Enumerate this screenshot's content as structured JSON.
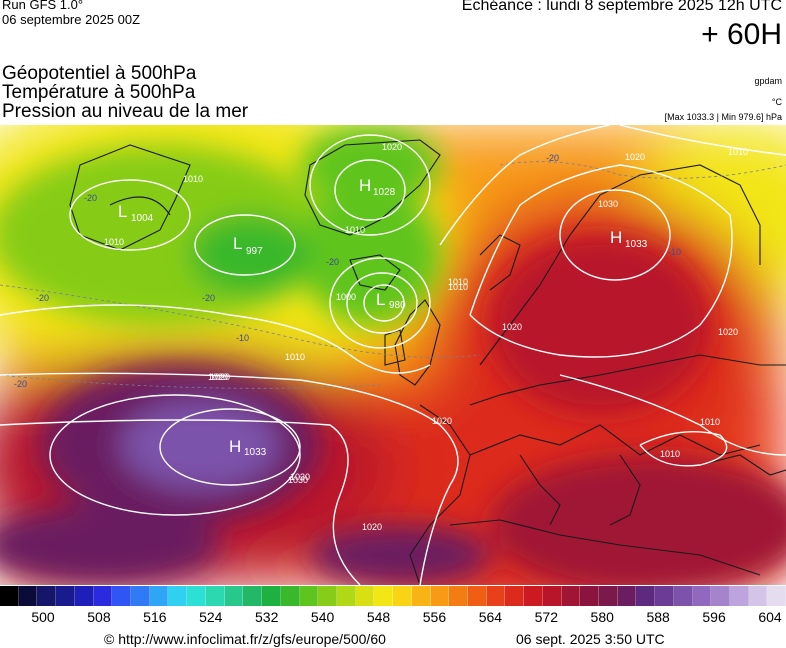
{
  "header": {
    "run_title": "Run GFS 1.0°",
    "run_date": "06 septembre 2025 00Z",
    "echeance": "Echéance : lundi 8 septembre 2025 12h UTC",
    "horizon": "+ 60H",
    "layers": [
      "Géopotentiel à 500hPa",
      "Température à 500hPa",
      "Pression au niveau de la mer"
    ],
    "units": [
      "gpdam",
      "°C",
      "[Max 1033.3 | Min 979.6] hPa"
    ]
  },
  "map": {
    "pressure_centers": [
      {
        "type": "L",
        "value": "1004"
      },
      {
        "type": "L",
        "value": "997"
      },
      {
        "type": "H",
        "value": "1028"
      },
      {
        "type": "L",
        "value": "980"
      },
      {
        "type": "H",
        "value": "1033"
      },
      {
        "type": "H",
        "value": "1033"
      }
    ],
    "isobar_labels": [
      "1010",
      "1020",
      "1010",
      "1020",
      "1000",
      "1010",
      "1010",
      "1020",
      "1030",
      "1010",
      "1020",
      "1030",
      "1010",
      "1020",
      "1020",
      "1010",
      "1010",
      "1020",
      "1030",
      "1020",
      "1010"
    ],
    "temperature_labels": [
      "-20",
      "-20",
      "-20",
      "-20",
      "-20",
      "-10",
      "-10",
      "-20"
    ]
  },
  "colorbar": {
    "colors": [
      "#000000",
      "#0b0b3a",
      "#15156a",
      "#1a1a8f",
      "#1e1eb8",
      "#2a2adf",
      "#2f55f5",
      "#2f7af5",
      "#2fa6f5",
      "#2fd0f0",
      "#2ce0d4",
      "#2cd8b0",
      "#28c88c",
      "#22b866",
      "#1eb040",
      "#38b82a",
      "#5ec41e",
      "#86cc18",
      "#b0d814",
      "#d8e014",
      "#f2e614",
      "#f8d414",
      "#f8b414",
      "#f89a14",
      "#f47c14",
      "#ef5e14",
      "#e8401a",
      "#dc2a1e",
      "#cc1a22",
      "#b8142a",
      "#a01434",
      "#8a143e",
      "#7a1a4a",
      "#6a1e60",
      "#5e2a80",
      "#6a3c96",
      "#7c52aa",
      "#9068be",
      "#a684cc",
      "#bea4dc",
      "#d4c4e8",
      "#e6dcf0"
    ],
    "ticks": [
      "500",
      "508",
      "516",
      "524",
      "532",
      "540",
      "548",
      "556",
      "564",
      "572",
      "580",
      "588",
      "596",
      "604"
    ]
  },
  "footer": {
    "url": "© http://www.infoclimat.fr/z/gfs/europe/500/60",
    "timestamp": "06 sept. 2025  3:50 UTC"
  }
}
